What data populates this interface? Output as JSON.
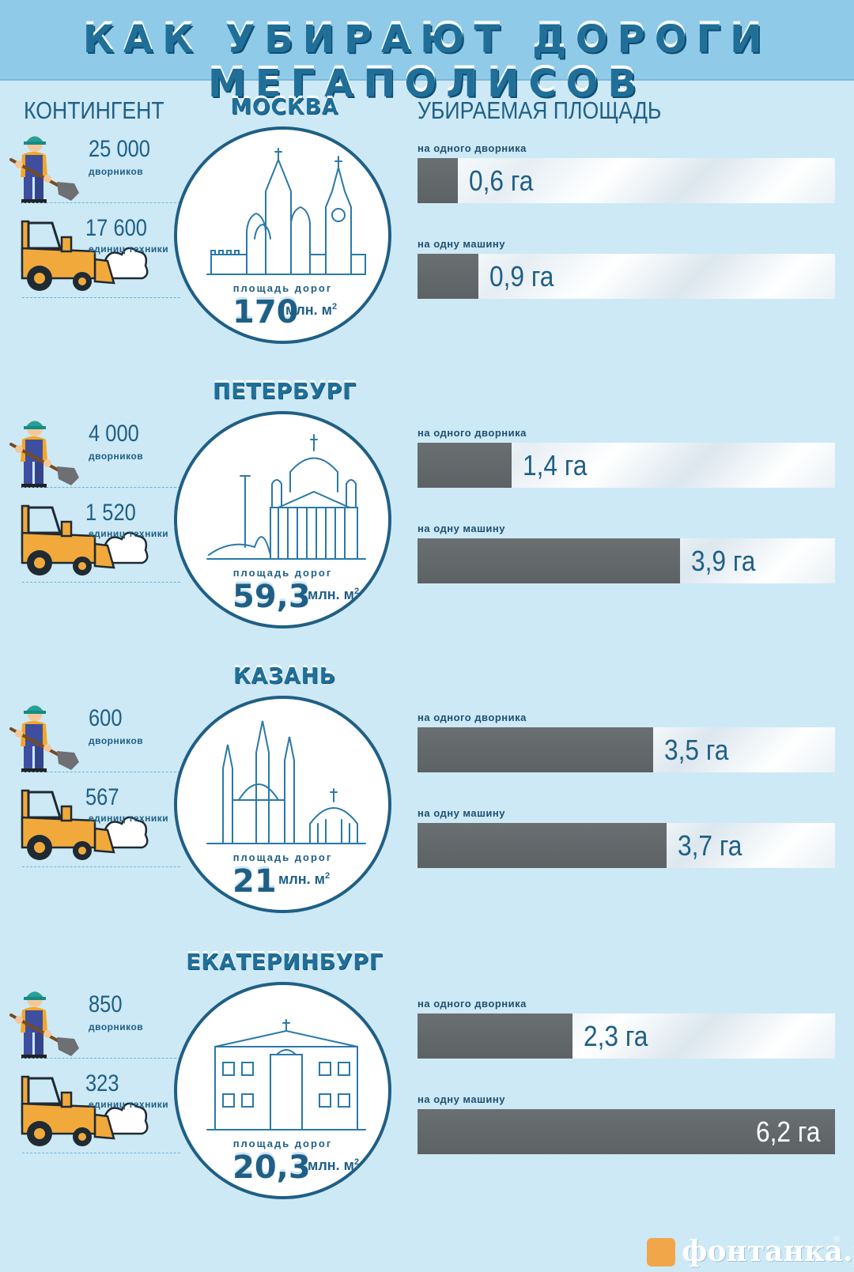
{
  "title": "КАК УБИРАЮТ ДОРОГИ МЕГАПОЛИСОВ",
  "headers": {
    "contingent": "КОНТИНГЕНТ",
    "area": "УБИРАЕМАЯ ПЛОЩАДЬ"
  },
  "labels": {
    "janitors": "дворников",
    "machines": "единиц техники",
    "roads_area": "площадь дорог",
    "unit": "млн. м",
    "unit_sup": "2",
    "per_janitor": "на одного дворника",
    "per_machine": "на одну машину"
  },
  "colors": {
    "header_bg": "#8fcbe8",
    "page_bg": "#cde9f6",
    "text": "#1f5f86",
    "bar_fill": "#5d6265",
    "worker_helmet": "#1fa39a",
    "worker_body": "#3d4f9e",
    "machine": "#f2a93b"
  },
  "chart_data": {
    "type": "bar",
    "orientation": "horizontal",
    "unit": "га",
    "xlim": [
      0,
      6.2
    ],
    "categories": [
      "МОСКВА",
      "ПЕТЕРБУРГ",
      "КАЗАНЬ",
      "ЕКАТЕРИНБУРГ"
    ],
    "series": [
      {
        "name": "на одного дворника",
        "values": [
          0.6,
          1.4,
          3.5,
          2.3
        ],
        "labels": [
          "0,6 га",
          "1,4 га",
          "3,5 га",
          "2,3 га"
        ]
      },
      {
        "name": "на одну машину",
        "values": [
          0.9,
          3.9,
          3.7,
          6.2
        ],
        "labels": [
          "0,9 га",
          "3,9 га",
          "3,7 га",
          "6,2 га"
        ]
      }
    ]
  },
  "cities": [
    {
      "name": "МОСКВА",
      "janitors": "25 000",
      "machines": "17 600",
      "road_area": "170",
      "icon": "kremlin-icon"
    },
    {
      "name": "ПЕТЕРБУРГ",
      "janitors": "4 000",
      "machines": "1 520",
      "road_area": "59,3",
      "icon": "isaac-cathedral-icon"
    },
    {
      "name": "КАЗАНЬ",
      "janitors": "600",
      "machines": "567",
      "road_area": "21",
      "icon": "kul-sharif-mosque-icon"
    },
    {
      "name": "ЕКАТЕРИНБУРГ",
      "janitors": "850",
      "machines": "323",
      "road_area": "20,3",
      "icon": "city-hall-icon"
    }
  ],
  "footer": {
    "logo": "фонтанка.ру",
    "reg": "®"
  }
}
